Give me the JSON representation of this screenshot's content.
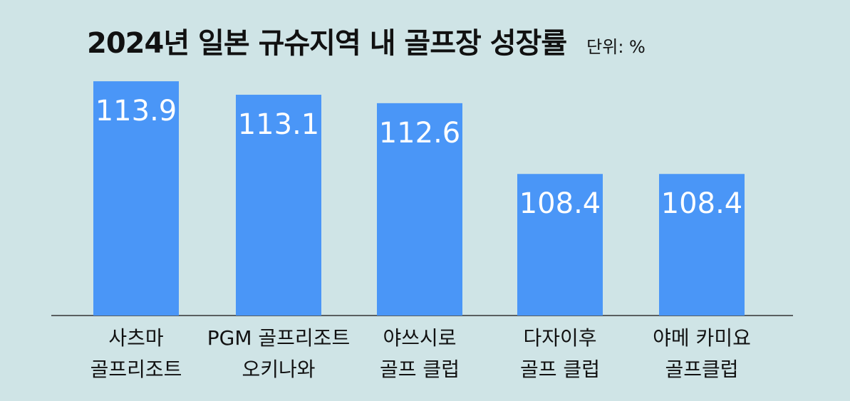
{
  "header": {
    "title": "2024년 일본 규슈지역 내 골프장 성장률",
    "unit": "단위: %"
  },
  "chart_data": {
    "type": "bar",
    "title": "2024년 일본 규슈지역 내 골프장 성장률",
    "unit": "단위: %",
    "categories": [
      [
        "사츠마",
        "골프리조트"
      ],
      [
        "PGM 골프리조트",
        "오키나와"
      ],
      [
        "야쓰시로",
        "골프 클럽"
      ],
      [
        "다자이후",
        "골프 클럽"
      ],
      [
        "야메 카미요",
        "골프클럽"
      ]
    ],
    "values": [
      113.9,
      113.1,
      112.6,
      108.4,
      108.4
    ],
    "value_labels": [
      "113.9",
      "113.1",
      "112.6",
      "108.4",
      "108.4"
    ],
    "ylim": [
      100,
      114.2
    ],
    "grid": false,
    "legend": "none",
    "bar_color": "#4a96f7",
    "background": "#cfe4e6"
  }
}
